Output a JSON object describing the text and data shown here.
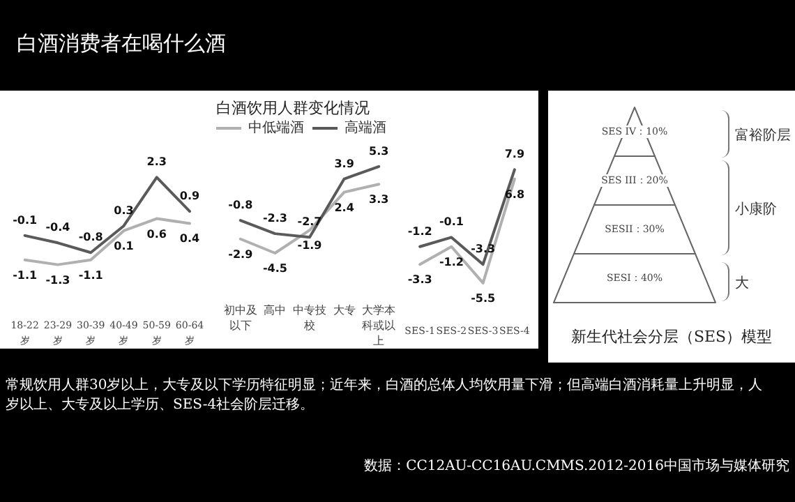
{
  "chart_data": [
    {
      "type": "line",
      "title": "白酒消费者在喝什么酒",
      "categories": [
        "18-22岁",
        "23-29岁",
        "30-39岁",
        "40-49岁",
        "50-59岁",
        "60-64岁"
      ],
      "series": [
        {
          "color": "#b0b0b0",
          "values": [
            -1.1,
            -1.3,
            -1.1,
            0.1,
            0.6,
            0.4
          ]
        },
        {
          "color": "#5a5a5a",
          "values": [
            -0.1,
            -0.4,
            -0.8,
            0.3,
            2.3,
            0.9
          ]
        }
      ],
      "data_labels": true,
      "grid": false,
      "marker": "none",
      "annotations": [
        "常规饮用人群30岁以上，大专及以下学历特征明显；近年来，白酒的总体人均饮用量下滑；但高端白酒消耗量上升明显，人",
        "岁以上、大专及以上学历、SES-4社会阶层迁移。",
        "数据：CC12AU-CC16AU.CMMS.2012-2016中国市场与媒体研究"
      ]
    },
    {
      "type": "line",
      "subtitle": "白酒饮用人群变化情况",
      "categories": [
        "初中及以下",
        "高中",
        "中专技校",
        "大专",
        "大学本科或以上"
      ],
      "series": [
        {
          "name": "中低端酒",
          "color": "#b0b0b0",
          "values": [
            -2.9,
            -4.5,
            -1.9,
            2.4,
            3.3
          ]
        },
        {
          "name": "高端酒",
          "color": "#5a5a5a",
          "values": [
            -0.8,
            -2.3,
            -2.7,
            3.9,
            5.3
          ]
        }
      ],
      "data_labels": true,
      "legend": "top",
      "grid": false,
      "marker": "none"
    },
    {
      "type": "line",
      "categories": [
        "SES-1",
        "SES-2",
        "SES-3",
        "SES-4"
      ],
      "series": [
        {
          "color": "#b0b0b0",
          "values": [
            -3.3,
            -1.2,
            -5.5,
            6.8
          ]
        },
        {
          "color": "#5a5a5a",
          "values": [
            -1.2,
            -0.1,
            -3.3,
            7.9
          ]
        }
      ],
      "data_labels": true,
      "grid": false,
      "marker": "none"
    },
    {
      "type": "other",
      "title": "新生代社会分层（SES）模型",
      "categories": [
        "SES IV",
        "SES III",
        "SESII",
        "SESI"
      ],
      "values": [
        10,
        20,
        30,
        40
      ],
      "value_labels": [
        "：10%",
        "：20%",
        "：30%",
        "：40%"
      ],
      "annotations": [
        "富裕阶层",
        "小康阶",
        "大"
      ]
    }
  ]
}
